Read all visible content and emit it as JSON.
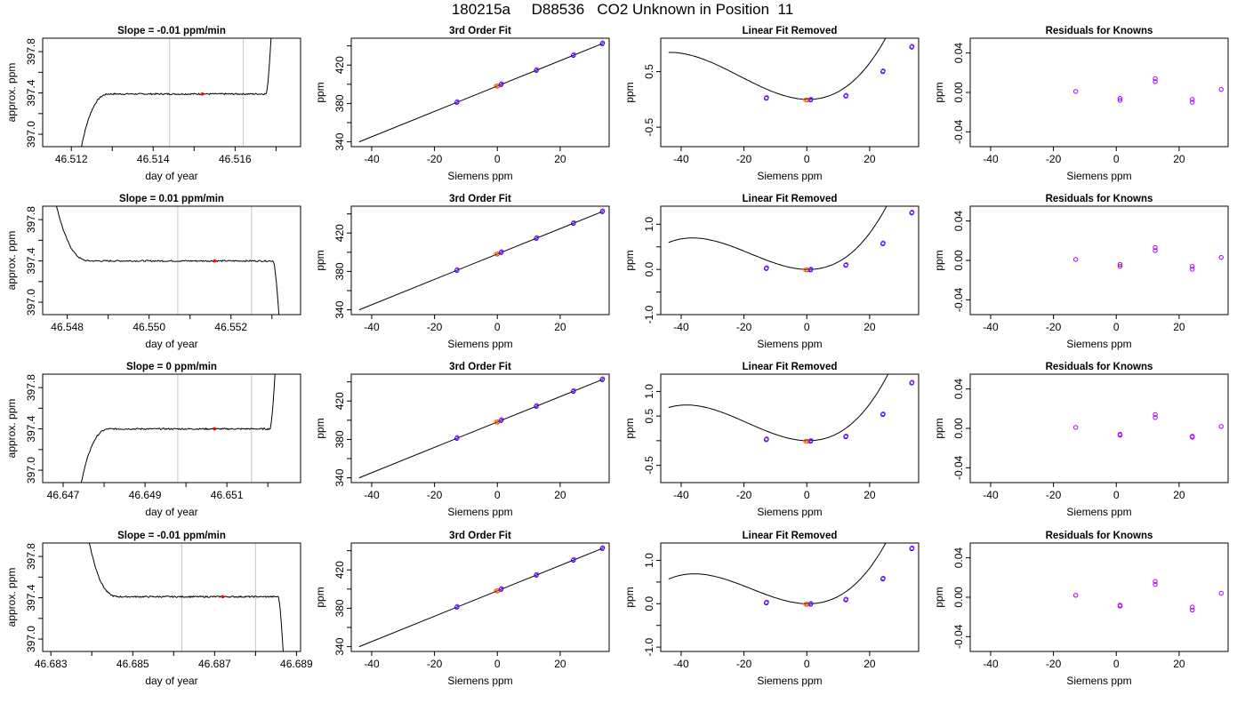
{
  "title": "180215a     D88536   CO2 Unknown in Position  11",
  "colors": {
    "line": "#000000",
    "unknown": "#ff0000",
    "known": "#0000ff",
    "prior": "#aa00ff",
    "orange": "#ff8800",
    "window": "#c8c8c8"
  },
  "chart_data": [
    {
      "type": "line",
      "title": "Slope =  -0.01  ppm/min",
      "xlabel": "day of year",
      "ylabel": "approx. ppm",
      "xlim": [
        46.5113,
        46.5176
      ],
      "ylim": [
        396.88,
        397.93
      ],
      "xticks": [
        46.512,
        46.513,
        46.514,
        46.515,
        46.516,
        46.517
      ],
      "xtick_labels": [
        "46.512",
        "",
        "46.514",
        "",
        "46.516",
        ""
      ],
      "yticks": [
        397.0,
        397.2,
        397.4,
        397.6,
        397.8
      ],
      "ytick_labels": [
        "397.0",
        "",
        "397.4",
        "",
        "397.8"
      ],
      "window": [
        46.5144,
        46.5162
      ],
      "marker": [
        46.5152,
        397.39
      ],
      "trace": {
        "start": 46.5122,
        "end": 46.5169,
        "level": 397.39,
        "lead": "up",
        "trail": "up"
      }
    },
    {
      "type": "line",
      "title": "3rd Order Fit",
      "xlabel": "Siemens ppm",
      "ylabel": "ppm",
      "xlim": [
        -46.5,
        35.6
      ],
      "ylim": [
        335,
        448
      ],
      "xticks": [
        -40,
        -20,
        0,
        20
      ],
      "xtick_labels": [
        "-40",
        "-20",
        "0",
        "20"
      ],
      "yticks": [
        340,
        360,
        380,
        400,
        420,
        440
      ],
      "ytick_labels": [
        "340",
        "",
        "380",
        "",
        "420",
        ""
      ],
      "fit_line": [
        [
          -44,
          340
        ],
        [
          33.7,
          442.7
        ]
      ],
      "knowns": [
        [
          -12.9,
          381.1
        ],
        [
          1.2,
          399.7
        ],
        [
          12.4,
          414.5
        ],
        [
          24.2,
          430.1
        ],
        [
          33.4,
          442.3
        ]
      ],
      "unknown": [
        0,
        398.1
      ]
    },
    {
      "type": "line",
      "title": "Linear Fit Removed",
      "xlabel": "Siemens ppm",
      "ylabel": "ppm",
      "xlim": [
        -46.5,
        35.6
      ],
      "ylim": [
        -0.85,
        1.1
      ],
      "xticks": [
        -40,
        -20,
        0,
        20
      ],
      "xtick_labels": [
        "-40",
        "-20",
        "0",
        "20"
      ],
      "yticks": [
        -0.5,
        0.5
      ],
      "ytick_labels": [
        "-0.5",
        "0.5"
      ],
      "cubic": [
        2e-05,
        0.00129,
        -0.00114,
        0.0
      ],
      "curve_x": [
        -44,
        33.4
      ],
      "knowns": [
        [
          -12.9,
          0.02
        ],
        [
          1.2,
          -0.01
        ],
        [
          12.4,
          0.06
        ],
        [
          24.2,
          0.5
        ],
        [
          33.4,
          0.94
        ]
      ],
      "unknown": [
        0,
        -0.01
      ]
    },
    {
      "type": "scatter",
      "title": "Residuals for Knowns",
      "xlabel": "Siemens ppm",
      "ylabel": "ppm",
      "xlim": [
        -46.5,
        35.6
      ],
      "ylim": [
        -0.055,
        0.055
      ],
      "xticks": [
        -40,
        -20,
        0,
        20
      ],
      "xtick_labels": [
        "-40",
        "-20",
        "0",
        "20"
      ],
      "yticks": [
        -0.04,
        0.0,
        0.04
      ],
      "ytick_labels": [
        "-0.04",
        "0.00",
        "0.04"
      ],
      "knowns": [
        [
          -12.9,
          0.001
        ],
        [
          1.2,
          -0.006
        ],
        [
          12.4,
          0.011
        ],
        [
          24.2,
          -0.01
        ],
        [
          33.4,
          0.003
        ]
      ],
      "priors": [
        [
          1.2,
          -0.008
        ],
        [
          12.4,
          0.014
        ],
        [
          24.2,
          -0.007
        ]
      ]
    },
    {
      "type": "line",
      "title": "Slope =  0.01  ppm/min",
      "xlabel": "day of year",
      "ylabel": "approx. ppm",
      "xlim": [
        46.5474,
        46.5537
      ],
      "ylim": [
        396.88,
        397.93
      ],
      "xticks": [
        46.548,
        46.549,
        46.55,
        46.551,
        46.552,
        46.553
      ],
      "xtick_labels": [
        "46.548",
        "",
        "46.550",
        "",
        "46.552",
        ""
      ],
      "yticks": [
        397.0,
        397.2,
        397.4,
        397.6,
        397.8
      ],
      "ytick_labels": [
        "397.0",
        "",
        "397.4",
        "",
        "397.8"
      ],
      "window": [
        46.5507,
        46.5525
      ],
      "marker": [
        46.5516,
        397.4
      ],
      "trace": {
        "start": 46.5477,
        "end": 46.5532,
        "level": 397.4,
        "lead": "down",
        "trail": "down"
      }
    },
    {
      "type": "line",
      "title": "3rd Order Fit",
      "xlabel": "Siemens ppm",
      "ylabel": "ppm",
      "xlim": [
        -46.5,
        35.6
      ],
      "ylim": [
        335,
        448
      ],
      "xticks": [
        -40,
        -20,
        0,
        20
      ],
      "xtick_labels": [
        "-40",
        "-20",
        "0",
        "20"
      ],
      "yticks": [
        340,
        360,
        380,
        400,
        420,
        440
      ],
      "ytick_labels": [
        "340",
        "",
        "380",
        "",
        "420",
        ""
      ],
      "fit_line": [
        [
          -44,
          340
        ],
        [
          33.7,
          442.7
        ]
      ],
      "knowns": [
        [
          -12.9,
          381.1
        ],
        [
          1.2,
          399.7
        ],
        [
          12.4,
          414.5
        ],
        [
          24.2,
          430.1
        ],
        [
          33.4,
          442.3
        ]
      ],
      "unknown": [
        0,
        398.1
      ]
    },
    {
      "type": "line",
      "title": "Linear Fit Removed",
      "xlabel": "Siemens ppm",
      "ylabel": "ppm",
      "xlim": [
        -46.5,
        35.6
      ],
      "ylim": [
        -1.0,
        1.4
      ],
      "xticks": [
        -40,
        -20,
        0,
        20
      ],
      "xtick_labels": [
        "-40",
        "-20",
        "0",
        "20"
      ],
      "yticks": [
        -1.0,
        -0.5,
        0.0,
        0.5,
        1.0
      ],
      "ytick_labels": [
        "-1.0",
        "",
        "0.0",
        "",
        "1.0"
      ],
      "cubic": [
        2.8e-05,
        0.00151,
        -0.0013,
        0.0
      ],
      "curve_x": [
        -44,
        33.4
      ],
      "knowns": [
        [
          -12.9,
          0.02
        ],
        [
          1.2,
          -0.01
        ],
        [
          12.4,
          0.09
        ],
        [
          24.2,
          0.57
        ],
        [
          33.4,
          1.25
        ]
      ],
      "unknown": [
        0,
        -0.01
      ]
    },
    {
      "type": "scatter",
      "title": "Residuals for Knowns",
      "xlabel": "Siemens ppm",
      "ylabel": "ppm",
      "xlim": [
        -46.5,
        35.6
      ],
      "ylim": [
        -0.055,
        0.055
      ],
      "xticks": [
        -40,
        -20,
        0,
        20
      ],
      "xtick_labels": [
        "-40",
        "-20",
        "0",
        "20"
      ],
      "yticks": [
        -0.04,
        0.0,
        0.04
      ],
      "ytick_labels": [
        "-0.04",
        "0.00",
        "0.04"
      ],
      "knowns": [
        [
          -12.9,
          0.001
        ],
        [
          1.2,
          -0.006
        ],
        [
          12.4,
          0.01
        ],
        [
          24.2,
          -0.009
        ],
        [
          33.4,
          0.003
        ]
      ],
      "priors": [
        [
          1.2,
          -0.004
        ],
        [
          12.4,
          0.013
        ],
        [
          24.2,
          -0.006
        ]
      ]
    },
    {
      "type": "line",
      "title": "Slope =  0  ppm/min",
      "xlabel": "day of year",
      "ylabel": "approx. ppm",
      "xlim": [
        46.6465,
        46.6528
      ],
      "ylim": [
        396.88,
        397.93
      ],
      "xticks": [
        46.647,
        46.648,
        46.649,
        46.65,
        46.651,
        46.652
      ],
      "xtick_labels": [
        "46.647",
        "",
        "46.649",
        "",
        "46.651",
        ""
      ],
      "yticks": [
        397.0,
        397.2,
        397.4,
        397.6,
        397.8
      ],
      "ytick_labels": [
        "397.0",
        "",
        "397.4",
        "",
        "397.8"
      ],
      "window": [
        46.6498,
        46.6516
      ],
      "marker": [
        46.6507,
        397.4
      ],
      "trace": {
        "start": 46.6474,
        "end": 46.6522,
        "level": 397.4,
        "lead": "up",
        "trail": "up"
      }
    },
    {
      "type": "line",
      "title": "3rd Order Fit",
      "xlabel": "Siemens ppm",
      "ylabel": "ppm",
      "xlim": [
        -46.5,
        35.6
      ],
      "ylim": [
        335,
        448
      ],
      "xticks": [
        -40,
        -20,
        0,
        20
      ],
      "xtick_labels": [
        "-40",
        "-20",
        "0",
        "20"
      ],
      "yticks": [
        340,
        360,
        380,
        400,
        420,
        440
      ],
      "ytick_labels": [
        "340",
        "",
        "380",
        "",
        "420",
        ""
      ],
      "fit_line": [
        [
          -44,
          340
        ],
        [
          33.7,
          442.7
        ]
      ],
      "knowns": [
        [
          -12.9,
          381.1
        ],
        [
          1.2,
          399.7
        ],
        [
          12.4,
          414.5
        ],
        [
          24.2,
          430.1
        ],
        [
          33.4,
          442.3
        ]
      ],
      "unknown": [
        0,
        398.1
      ]
    },
    {
      "type": "line",
      "title": "Linear Fit Removed",
      "xlabel": "Siemens ppm",
      "ylabel": "ppm",
      "xlim": [
        -46.5,
        35.6
      ],
      "ylim": [
        -0.85,
        1.35
      ],
      "xticks": [
        -40,
        -20,
        0,
        20
      ],
      "xtick_labels": [
        "-40",
        "-20",
        "0",
        "20"
      ],
      "yticks": [
        -0.5,
        0.0,
        0.5,
        1.0
      ],
      "ytick_labels": [
        "-0.5",
        "",
        "0.5",
        "1.0"
      ],
      "cubic": [
        2.5e-05,
        0.00142,
        -0.0012,
        0.0
      ],
      "curve_x": [
        -44,
        33.4
      ],
      "knowns": [
        [
          -12.9,
          0.02
        ],
        [
          1.2,
          -0.01
        ],
        [
          12.4,
          0.08
        ],
        [
          24.2,
          0.53
        ],
        [
          33.4,
          1.17
        ]
      ],
      "unknown": [
        0,
        -0.01
      ]
    },
    {
      "type": "scatter",
      "title": "Residuals for Knowns",
      "xlabel": "Siemens ppm",
      "ylabel": "ppm",
      "xlim": [
        -46.5,
        35.6
      ],
      "ylim": [
        -0.055,
        0.055
      ],
      "xticks": [
        -40,
        -20,
        0,
        20
      ],
      "xtick_labels": [
        "-40",
        "-20",
        "0",
        "20"
      ],
      "yticks": [
        -0.04,
        0.0,
        0.04
      ],
      "ytick_labels": [
        "-0.04",
        "0.00",
        "0.04"
      ],
      "knowns": [
        [
          -12.9,
          0.001
        ],
        [
          1.2,
          -0.007
        ],
        [
          12.4,
          0.011
        ],
        [
          24.2,
          -0.009
        ],
        [
          33.4,
          0.002
        ]
      ],
      "priors": [
        [
          1.2,
          -0.006
        ],
        [
          12.4,
          0.014
        ],
        [
          24.2,
          -0.008
        ]
      ]
    },
    {
      "type": "line",
      "title": "Slope =  -0.01  ppm/min",
      "xlabel": "day of year",
      "ylabel": "approx. ppm",
      "xlim": [
        46.6828,
        46.6891
      ],
      "ylim": [
        396.88,
        397.93
      ],
      "xticks": [
        46.683,
        46.684,
        46.685,
        46.686,
        46.687,
        46.688,
        46.689
      ],
      "xtick_labels": [
        "46.683",
        "",
        "46.685",
        "",
        "46.687",
        "",
        "46.689"
      ],
      "yticks": [
        397.0,
        397.2,
        397.4,
        397.6,
        397.8
      ],
      "ytick_labels": [
        "397.0",
        "",
        "397.4",
        "",
        "397.8"
      ],
      "window": [
        46.6862,
        46.688
      ],
      "marker": [
        46.6872,
        397.41
      ],
      "trace": {
        "start": 46.6839,
        "end": 46.6887,
        "level": 397.41,
        "lead": "down",
        "trail": "down"
      }
    },
    {
      "type": "line",
      "title": "3rd Order Fit",
      "xlabel": "Siemens ppm",
      "ylabel": "ppm",
      "xlim": [
        -46.5,
        35.6
      ],
      "ylim": [
        335,
        448
      ],
      "xticks": [
        -40,
        -20,
        0,
        20
      ],
      "xtick_labels": [
        "-40",
        "-20",
        "0",
        "20"
      ],
      "yticks": [
        340,
        360,
        380,
        400,
        420,
        440
      ],
      "ytick_labels": [
        "340",
        "",
        "380",
        "",
        "420",
        ""
      ],
      "fit_line": [
        [
          -44,
          340
        ],
        [
          33.7,
          442.7
        ]
      ],
      "knowns": [
        [
          -12.9,
          381.1
        ],
        [
          1.2,
          399.7
        ],
        [
          12.4,
          414.5
        ],
        [
          24.2,
          430.1
        ],
        [
          33.4,
          442.3
        ]
      ],
      "unknown": [
        0,
        398.1
      ]
    },
    {
      "type": "line",
      "title": "Linear Fit Removed",
      "xlabel": "Siemens ppm",
      "ylabel": "ppm",
      "xlim": [
        -46.5,
        35.6
      ],
      "ylim": [
        -1.1,
        1.4
      ],
      "xticks": [
        -40,
        -20,
        0,
        20
      ],
      "xtick_labels": [
        "-40",
        "-20",
        "0",
        "20"
      ],
      "yticks": [
        -1.0,
        -0.5,
        0.0,
        0.5,
        1.0
      ],
      "ytick_labels": [
        "-1.0",
        "",
        "0.0",
        "",
        "1.0"
      ],
      "cubic": [
        2.9e-05,
        0.00154,
        -0.0013,
        0.0
      ],
      "curve_x": [
        -44,
        33.4
      ],
      "knowns": [
        [
          -12.9,
          0.02
        ],
        [
          1.2,
          -0.01
        ],
        [
          12.4,
          0.09
        ],
        [
          24.2,
          0.57
        ],
        [
          33.4,
          1.27
        ]
      ],
      "unknown": [
        0,
        -0.01
      ]
    },
    {
      "type": "scatter",
      "title": "Residuals for Knowns",
      "xlabel": "Siemens ppm",
      "ylabel": "ppm",
      "xlim": [
        -46.5,
        35.6
      ],
      "ylim": [
        -0.055,
        0.055
      ],
      "xticks": [
        -40,
        -20,
        0,
        20
      ],
      "xtick_labels": [
        "-40",
        "-20",
        "0",
        "20"
      ],
      "yticks": [
        -0.04,
        0.0,
        0.04
      ],
      "ytick_labels": [
        "-0.04",
        "0.00",
        "0.04"
      ],
      "knowns": [
        [
          -12.9,
          0.002
        ],
        [
          1.2,
          -0.008
        ],
        [
          12.4,
          0.013
        ],
        [
          24.2,
          -0.01
        ],
        [
          33.4,
          0.004
        ]
      ],
      "priors": [
        [
          1.2,
          -0.009
        ],
        [
          12.4,
          0.016
        ],
        [
          24.2,
          -0.013
        ]
      ]
    }
  ]
}
